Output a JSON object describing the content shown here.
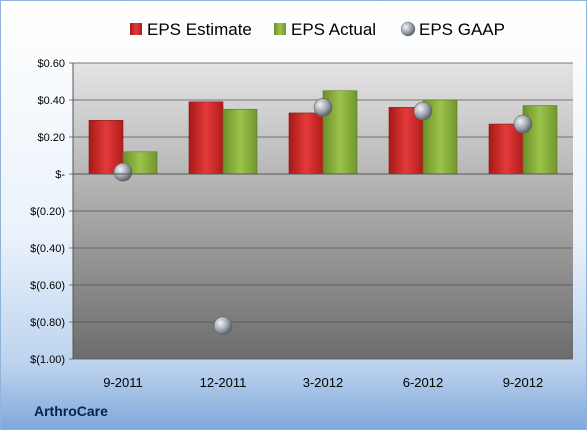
{
  "company": "ArthroCare",
  "colors": {
    "estimate": "#d42a2a",
    "actual": "#86b03a",
    "gaap": "#9aa3ad"
  },
  "chart_data": {
    "type": "bar",
    "categories": [
      "9-2011",
      "12-2011",
      "3-2012",
      "6-2012",
      "9-2012"
    ],
    "series": [
      {
        "name": "EPS Estimate",
        "kind": "bar",
        "values": [
          0.29,
          0.39,
          0.33,
          0.36,
          0.27
        ]
      },
      {
        "name": "EPS Actual",
        "kind": "bar",
        "values": [
          0.12,
          0.35,
          0.45,
          0.4,
          0.37
        ]
      },
      {
        "name": "EPS GAAP",
        "kind": "marker",
        "values": [
          0.01,
          -0.82,
          0.36,
          0.34,
          0.27
        ]
      }
    ],
    "yticks": [
      "$0.60",
      "$0.40",
      "$0.20",
      "$-",
      "$(0.20)",
      "$(0.40)",
      "$(0.60)",
      "$(0.80)",
      "$(1.00)"
    ],
    "ylim": [
      -1.0,
      0.6
    ],
    "grid": true,
    "legend": "top"
  }
}
